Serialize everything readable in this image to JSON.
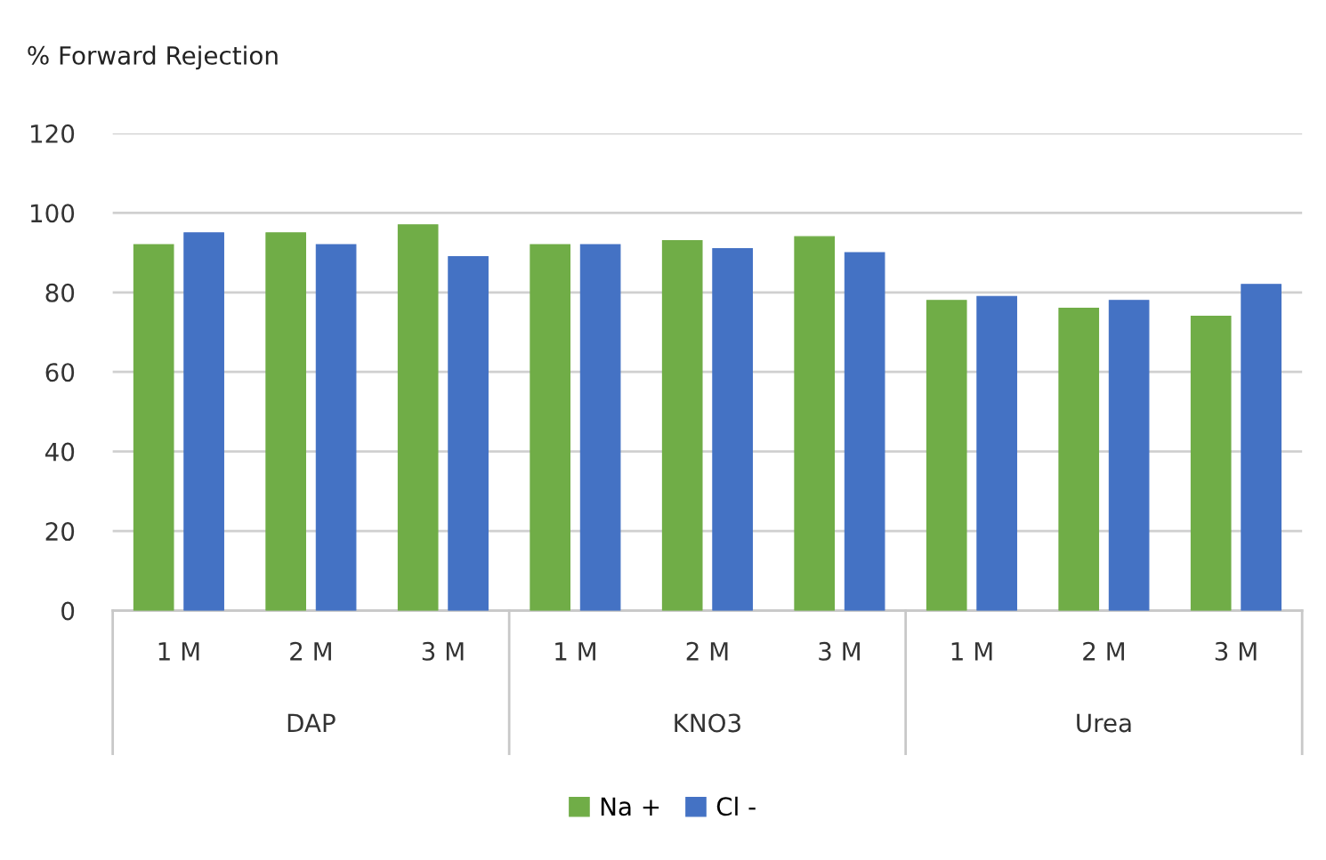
{
  "chart_data": {
    "type": "bar",
    "title": "% Forward Rejection",
    "categories": [
      "1 M",
      "2 M",
      "3 M",
      "1 M",
      "2 M",
      "3 M",
      "1 M",
      "2 M",
      "3 M"
    ],
    "series": [
      {
        "name": "Na +",
        "color": "#70ad47",
        "values": [
          92,
          95,
          97,
          92,
          93,
          94,
          78,
          76,
          74
        ]
      },
      {
        "name": "Cl -",
        "color": "#4472c4",
        "values": [
          95,
          92,
          89,
          92,
          91,
          90,
          79,
          78,
          82
        ]
      }
    ],
    "annotations": [
      "DAP",
      "KNO3",
      "Urea"
    ],
    "ylim": [
      0,
      120
    ],
    "yticks": [
      0,
      20,
      40,
      60,
      80,
      100,
      120
    ],
    "grid": "y",
    "legend": "bottom"
  }
}
